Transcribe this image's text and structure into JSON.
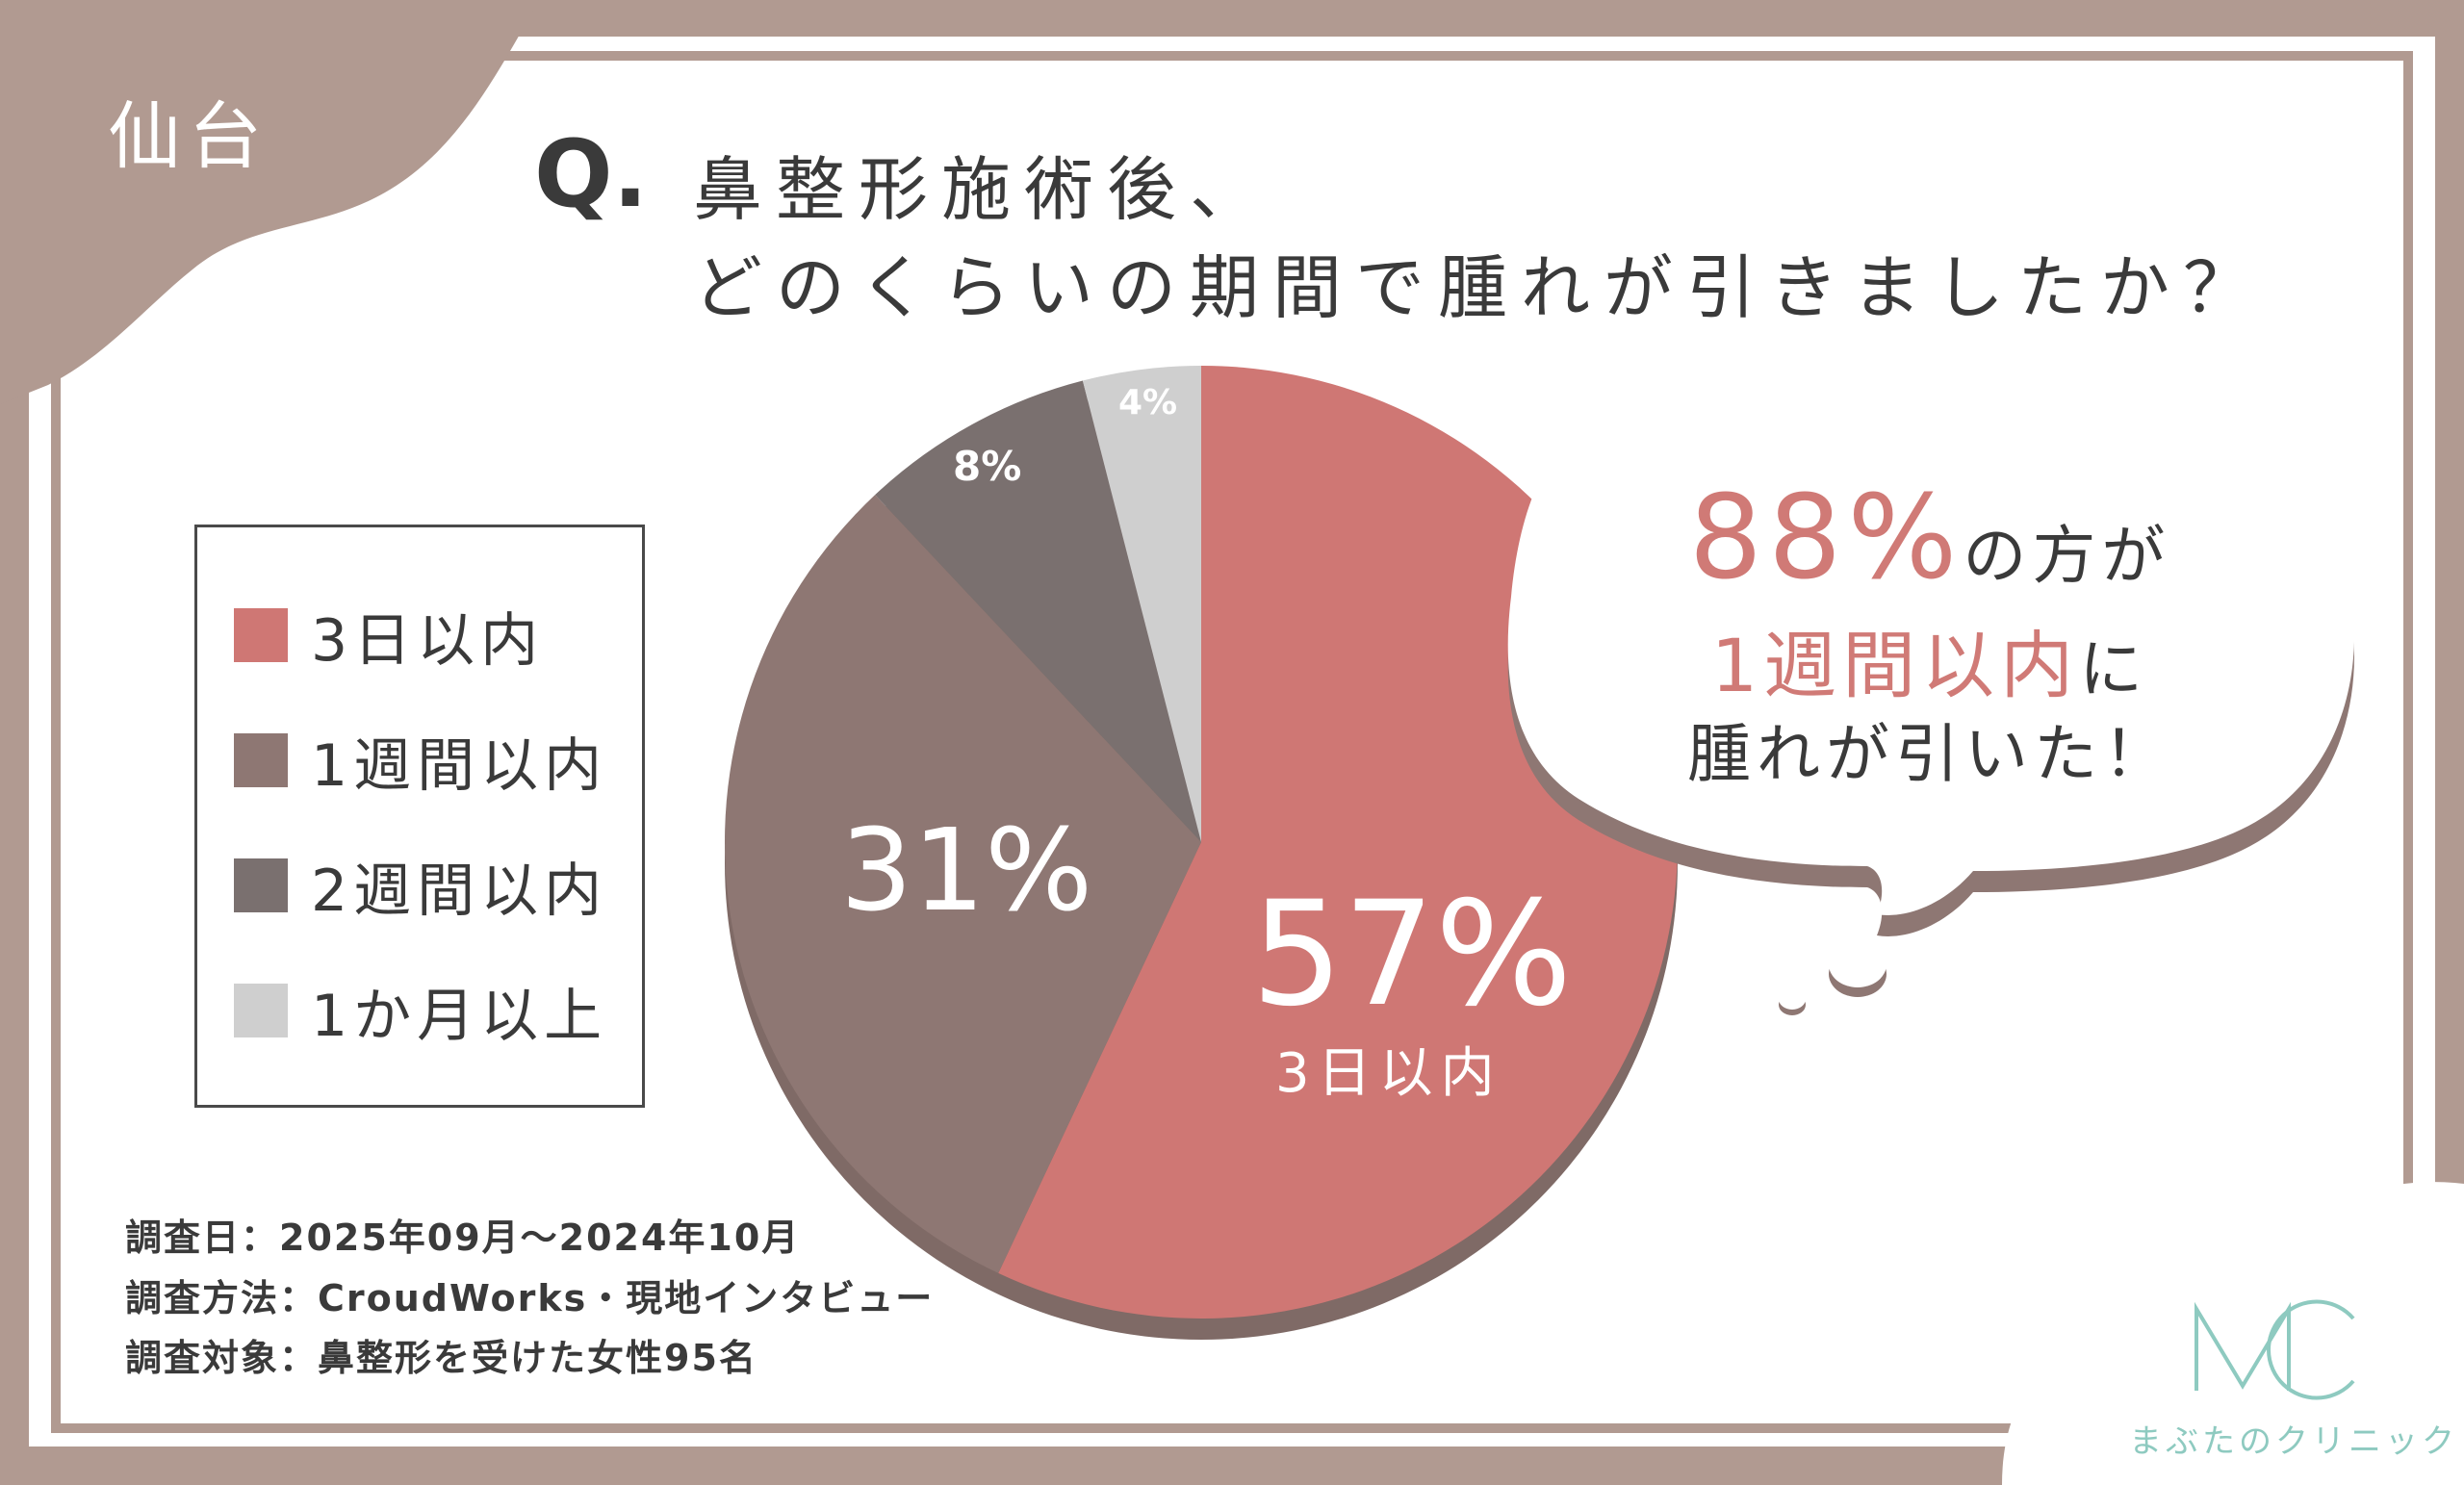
{
  "region_tag": "仙台",
  "question": {
    "prefix": "Q.",
    "line1": "鼻整形施術後、",
    "line2": "どのくらいの期間で腫れが引きましたか？"
  },
  "colors": {
    "background": "#b19a91",
    "card": "#ffffff",
    "slice_3days": "#cf7774",
    "slice_1week": "#8e7773",
    "slice_2weeks": "#7a706f",
    "slice_1month": "#cfcfcf",
    "accent_text": "#d07a76",
    "logo": "#8ecac0"
  },
  "chart_data": {
    "type": "pie",
    "slices": [
      {
        "label": "3日以内",
        "value": 57,
        "display": "57%",
        "color": "#cf7774"
      },
      {
        "label": "1週間以内",
        "value": 31,
        "display": "31%",
        "color": "#8e7773"
      },
      {
        "label": "2週間以内",
        "value": 8,
        "display": "8%",
        "color": "#7a706f"
      },
      {
        "label": "1か月以上",
        "value": 4,
        "display": "4%",
        "color": "#cfcfcf"
      }
    ],
    "callout_sublabel": "3日以内",
    "legend_placement": "left"
  },
  "legend": {
    "items": [
      {
        "label": "3日以内",
        "color": "#cf7774"
      },
      {
        "label": "1週間以内",
        "color": "#8e7773"
      },
      {
        "label": "2週間以内",
        "color": "#7a706f"
      },
      {
        "label": "1か月以上",
        "color": "#cfcfcf"
      }
    ]
  },
  "bubble": {
    "line1_accent": "88%",
    "line1_rest": "の方が",
    "line2_accent": "1週間以内",
    "line2_rest": "に",
    "line3": "腫れが引いた！"
  },
  "notes": {
    "date": "調査日：2025年09月〜2024年10月",
    "method": "調査方法：CroudWorks・現地インタビュー",
    "target": "調査対象：鼻整形を受けた女性95名"
  },
  "logo": {
    "mark": "MC",
    "text": "まぶたのクリニック"
  }
}
